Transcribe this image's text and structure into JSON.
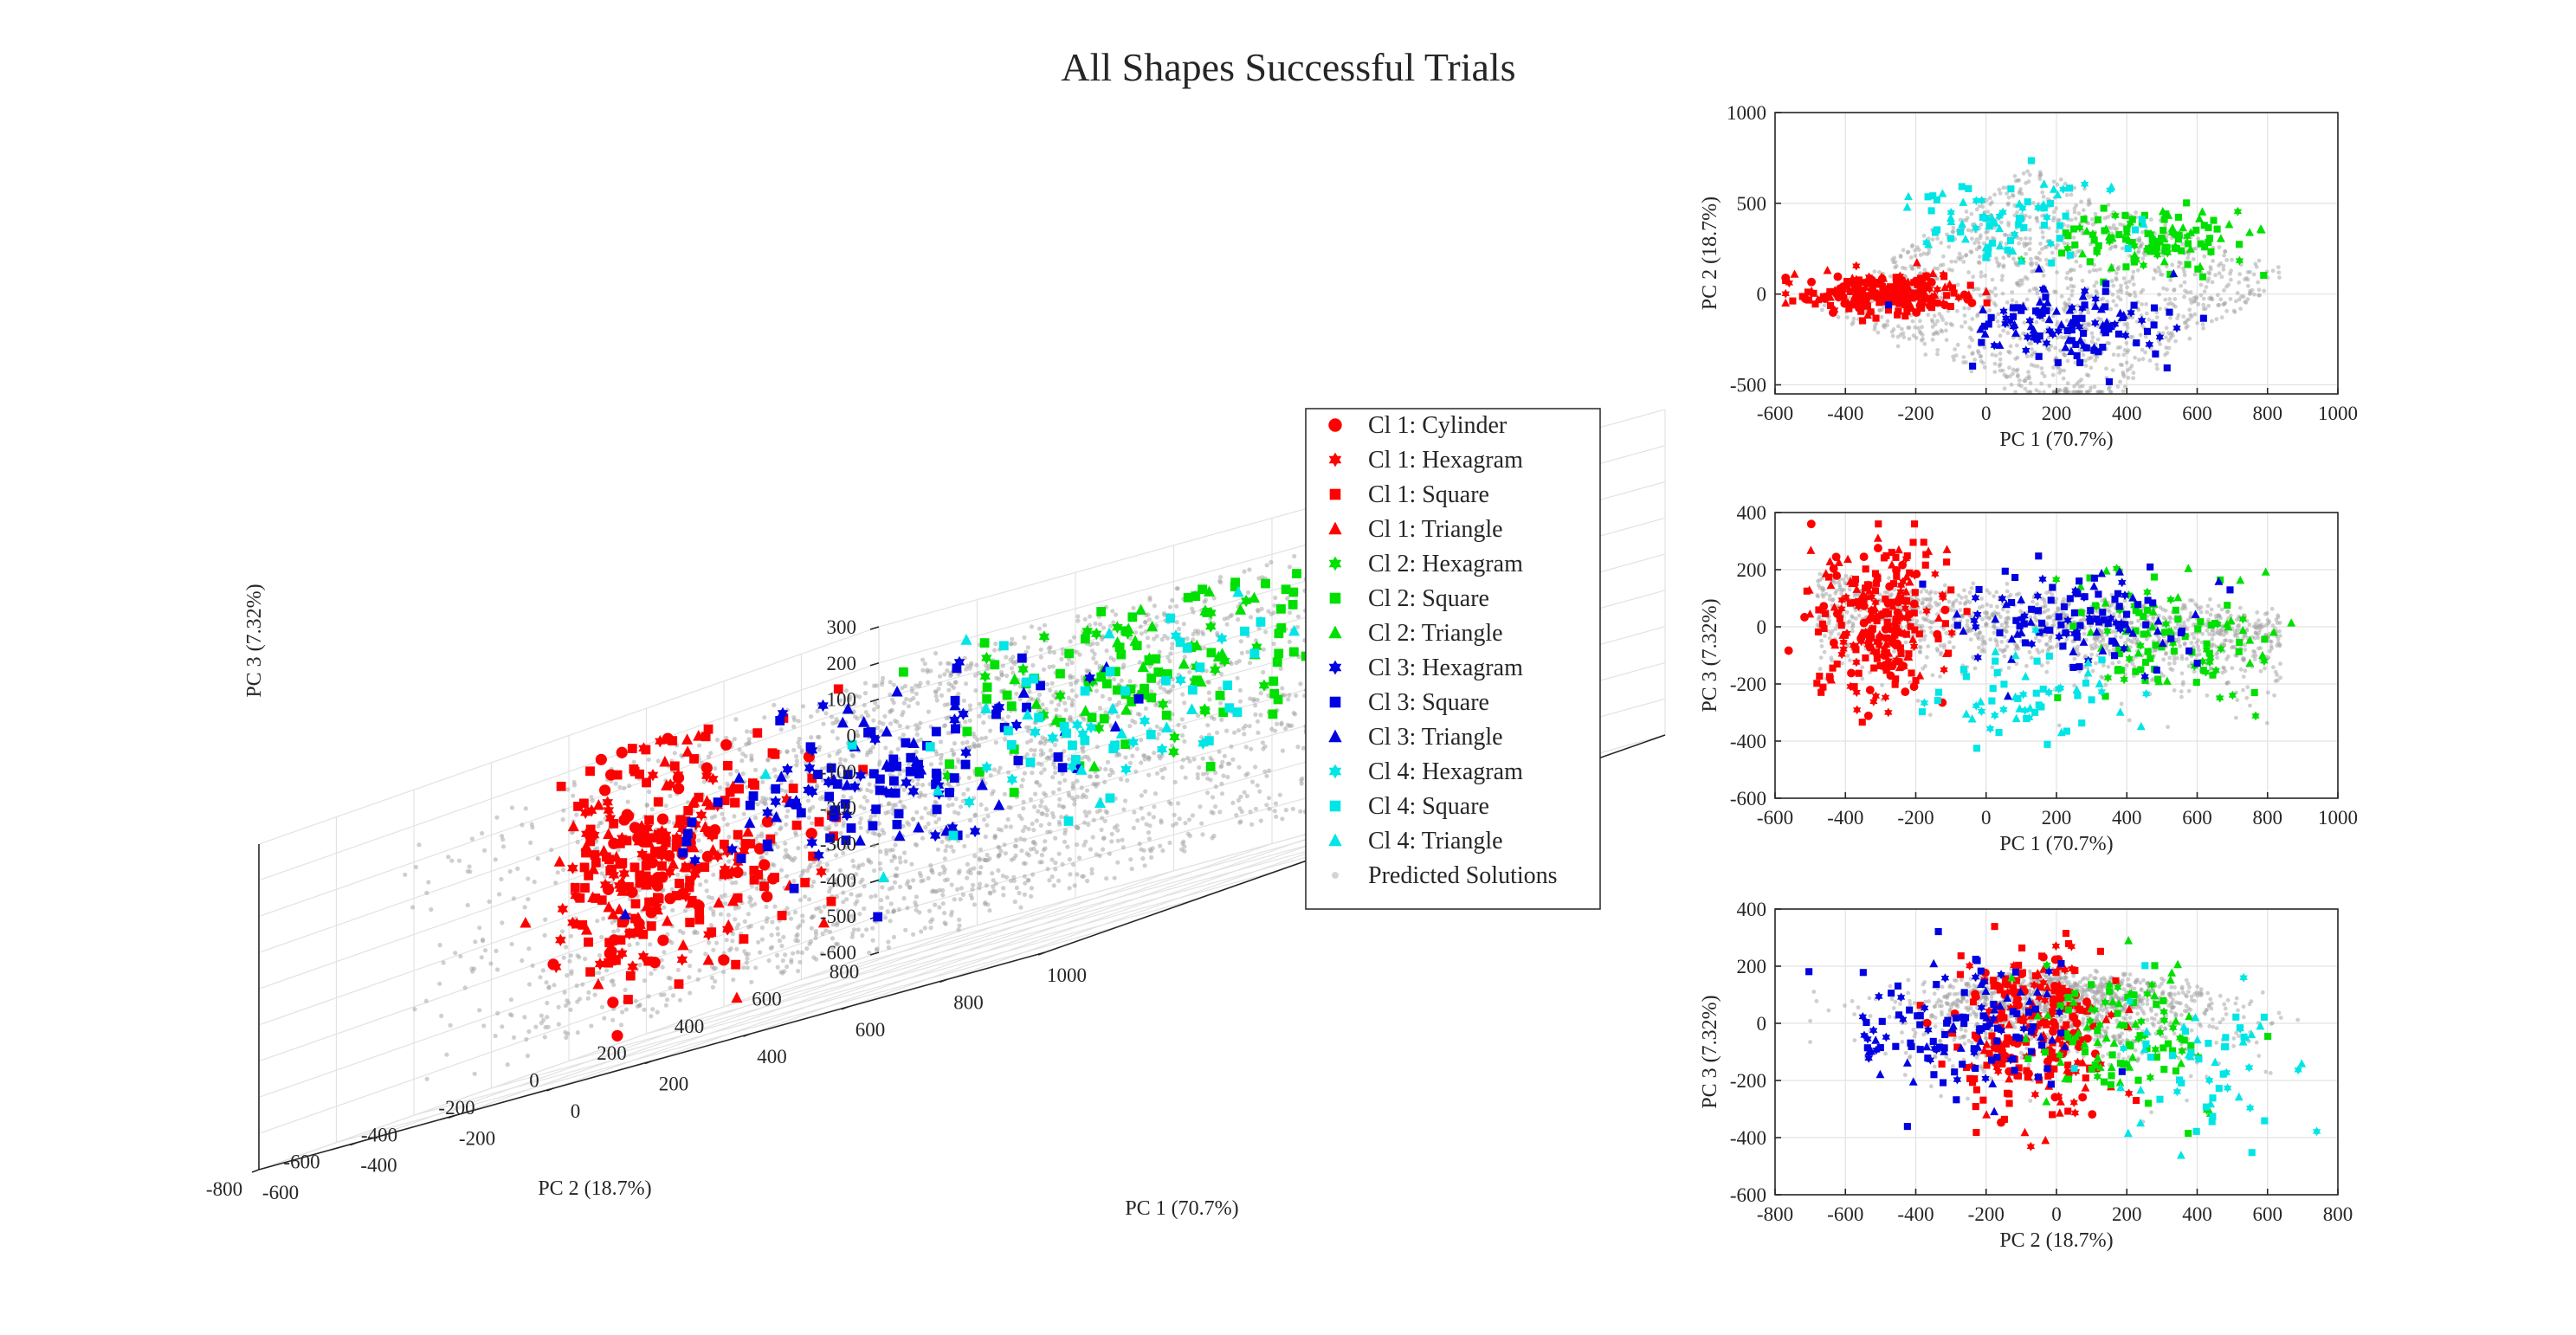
{
  "title": "All Shapes Successful Trials",
  "colors": {
    "cl1": "#ff0000",
    "cl2": "#00e000",
    "cl3": "#0000e0",
    "cl4": "#00e5e5",
    "predicted": "#a0a0a0",
    "axis": "#262626"
  },
  "legend": [
    {
      "label": "Cl 1: Cylinder",
      "color": "cl1",
      "marker": "circle"
    },
    {
      "label": "Cl 1: Hexagram",
      "color": "cl1",
      "marker": "hexagram"
    },
    {
      "label": "Cl 1: Square",
      "color": "cl1",
      "marker": "square"
    },
    {
      "label": "Cl 1: Triangle",
      "color": "cl1",
      "marker": "triangle"
    },
    {
      "label": "Cl 2: Hexagram",
      "color": "cl2",
      "marker": "hexagram"
    },
    {
      "label": "Cl 2: Square",
      "color": "cl2",
      "marker": "square"
    },
    {
      "label": "Cl 2: Triangle",
      "color": "cl2",
      "marker": "triangle"
    },
    {
      "label": "Cl 3: Hexagram",
      "color": "cl3",
      "marker": "hexagram"
    },
    {
      "label": "Cl 3: Square",
      "color": "cl3",
      "marker": "square"
    },
    {
      "label": "Cl 3: Triangle",
      "color": "cl3",
      "marker": "triangle"
    },
    {
      "label": "Cl 4: Hexagram",
      "color": "cl4",
      "marker": "hexagram"
    },
    {
      "label": "Cl 4: Square",
      "color": "cl4",
      "marker": "square"
    },
    {
      "label": "Cl 4: Triangle",
      "color": "cl4",
      "marker": "triangle"
    },
    {
      "label": "Predicted Solutions",
      "color": "predicted",
      "marker": "dot"
    }
  ],
  "chart_data": [
    {
      "type": "scatter",
      "view": "3d",
      "xlabel": "PC 1 (70.7%)",
      "ylabel": "PC 2 (18.7%)",
      "zlabel": "PC 3 (7.32%)",
      "xlim": [
        -600,
        1000
      ],
      "ylim": [
        -800,
        800
      ],
      "zlim": [
        -600,
        300
      ],
      "xticks": [
        "-600",
        "-400",
        "-200",
        "0",
        "200",
        "400",
        "600",
        "800",
        "1000"
      ],
      "yticks": [
        "-800",
        "-600",
        "-400",
        "-200",
        "0",
        "200",
        "400",
        "600",
        "800"
      ],
      "zticks": [
        "-600",
        "-500",
        "-400",
        "-300",
        "-200",
        "-100",
        "0",
        "100",
        "200",
        "300"
      ],
      "grid": true,
      "series": [
        {
          "name": "Cl 1",
          "color": "cl1",
          "center": [
            -320,
            -100,
            -120
          ],
          "spread": [
            120,
            80,
            170
          ],
          "count": 320
        },
        {
          "name": "Cl 2",
          "color": "cl2",
          "center": [
            450,
            200,
            30
          ],
          "spread": [
            170,
            120,
            110
          ],
          "count": 140
        },
        {
          "name": "Cl 3",
          "color": "cl3",
          "center": [
            280,
            -280,
            -40
          ],
          "spread": [
            180,
            110,
            110
          ],
          "count": 140
        },
        {
          "name": "Cl 4",
          "color": "cl4",
          "center": [
            100,
            450,
            -60
          ],
          "spread": [
            200,
            120,
            130
          ],
          "count": 70
        },
        {
          "name": "Predicted Solutions",
          "color": "predicted",
          "count": 2600
        }
      ]
    },
    {
      "type": "scatter",
      "view": "PC1-PC2",
      "xlabel": "PC 1 (70.7%)",
      "ylabel": "PC 2 (18.7%)",
      "xlim": [
        -600,
        1000
      ],
      "ylim": [
        -550,
        1000
      ],
      "xticks": [
        "-600",
        "-400",
        "-200",
        "0",
        "200",
        "400",
        "600",
        "800",
        "1000"
      ],
      "yticks": [
        "-500",
        "0",
        "500",
        "1000"
      ],
      "grid": true,
      "series": [
        {
          "name": "Cl 1",
          "color": "cl1",
          "center": [
            -290,
            0
          ],
          "spread": [
            110,
            55
          ],
          "count": 240
        },
        {
          "name": "Cl 2",
          "color": "cl2",
          "center": [
            480,
            280
          ],
          "spread": [
            150,
            95
          ],
          "count": 120
        },
        {
          "name": "Cl 3",
          "color": "cl3",
          "center": [
            250,
            -170
          ],
          "spread": [
            150,
            110
          ],
          "count": 120
        },
        {
          "name": "Cl 4",
          "color": "cl4",
          "center": [
            60,
            420
          ],
          "spread": [
            140,
            110
          ],
          "count": 80
        },
        {
          "name": "Predicted Solutions",
          "color": "predicted",
          "count": 1300
        }
      ]
    },
    {
      "type": "scatter",
      "view": "PC1-PC3",
      "xlabel": "PC 1 (70.7%)",
      "ylabel": "PC 3 (7.32%)",
      "xlim": [
        -600,
        1000
      ],
      "ylim": [
        -600,
        400
      ],
      "xticks": [
        "-600",
        "-400",
        "-200",
        "0",
        "200",
        "400",
        "600",
        "800",
        "1000"
      ],
      "yticks": [
        "-600",
        "-400",
        "-200",
        "0",
        "200",
        "400"
      ],
      "grid": true,
      "series": [
        {
          "name": "Cl 1",
          "color": "cl1",
          "center": [
            -300,
            20
          ],
          "spread": [
            90,
            140
          ],
          "count": 260
        },
        {
          "name": "Cl 2",
          "color": "cl2",
          "center": [
            520,
            -40
          ],
          "spread": [
            160,
            110
          ],
          "count": 110
        },
        {
          "name": "Cl 3",
          "color": "cl3",
          "center": [
            250,
            10
          ],
          "spread": [
            170,
            90
          ],
          "count": 120
        },
        {
          "name": "Cl 4",
          "color": "cl4",
          "center": [
            100,
            -250
          ],
          "spread": [
            150,
            100
          ],
          "count": 60
        },
        {
          "name": "Predicted Solutions",
          "color": "predicted",
          "count": 1300
        }
      ]
    },
    {
      "type": "scatter",
      "view": "PC2-PC3",
      "xlabel": "PC 2 (18.7%)",
      "ylabel": "PC 3 (7.32%)",
      "xlim": [
        -800,
        800
      ],
      "ylim": [
        -600,
        400
      ],
      "xticks": [
        "-800",
        "-600",
        "-400",
        "-200",
        "0",
        "200",
        "400",
        "600",
        "800"
      ],
      "yticks": [
        "-600",
        "-400",
        "-200",
        "0",
        "200",
        "400"
      ],
      "grid": true,
      "series": [
        {
          "name": "Cl 1",
          "color": "cl1",
          "center": [
            -60,
            -60
          ],
          "spread": [
            110,
            150
          ],
          "count": 260
        },
        {
          "name": "Cl 2",
          "color": "cl2",
          "center": [
            200,
            -40
          ],
          "spread": [
            130,
            120
          ],
          "count": 110
        },
        {
          "name": "Cl 3",
          "color": "cl3",
          "center": [
            -260,
            -20
          ],
          "spread": [
            170,
            110
          ],
          "count": 130
        },
        {
          "name": "Cl 4",
          "color": "cl4",
          "center": [
            430,
            -150
          ],
          "spread": [
            140,
            130
          ],
          "count": 60
        },
        {
          "name": "Predicted Solutions",
          "color": "predicted",
          "count": 1300
        }
      ]
    }
  ]
}
